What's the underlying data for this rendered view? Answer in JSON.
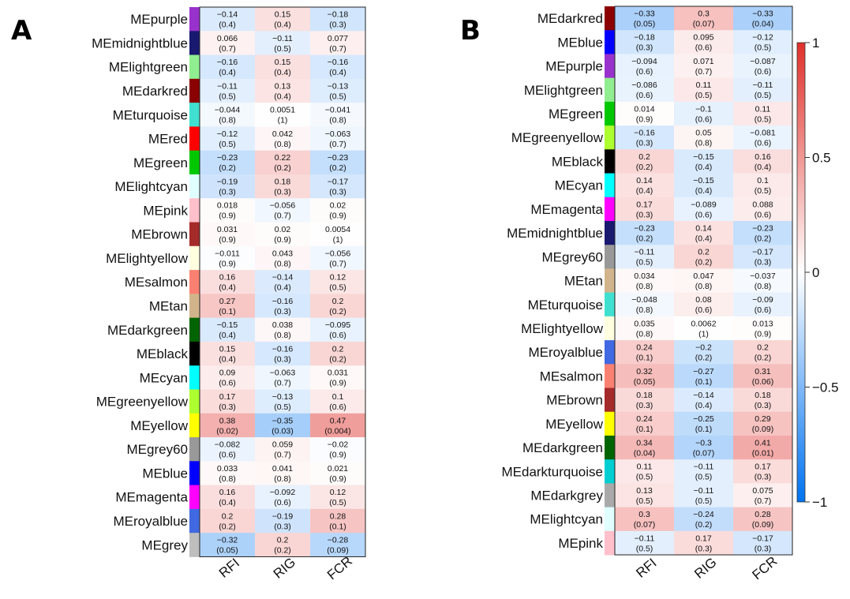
{
  "chart_data": [
    {
      "type": "heatmap",
      "panel_label": "A",
      "columns": [
        "RFI",
        "RIG",
        "FCR"
      ],
      "rows": [
        {
          "module": "MEpurple",
          "color": "#9932cc",
          "corr": [
            -0.14,
            0.15,
            -0.18
          ],
          "corr_text": [
            "−0.14",
            "0.15",
            "−0.18"
          ],
          "p": [
            "(0.4)",
            "(0.4)",
            "(0.3)"
          ]
        },
        {
          "module": "MEmidnightblue",
          "color": "#191970",
          "corr": [
            0.066,
            -0.11,
            0.077
          ],
          "corr_text": [
            "0.066",
            "−0.11",
            "0.077"
          ],
          "p": [
            "(0.7)",
            "(0.5)",
            "(0.7)"
          ]
        },
        {
          "module": "MElightgreen",
          "color": "#90ee90",
          "corr": [
            -0.16,
            0.15,
            -0.16
          ],
          "corr_text": [
            "−0.16",
            "0.15",
            "−0.16"
          ],
          "p": [
            "(0.4)",
            "(0.4)",
            "(0.4)"
          ]
        },
        {
          "module": "MEdarkred",
          "color": "#8b0000",
          "corr": [
            -0.11,
            0.13,
            -0.13
          ],
          "corr_text": [
            "−0.11",
            "0.13",
            "−0.13"
          ],
          "p": [
            "(0.5)",
            "(0.4)",
            "(0.5)"
          ]
        },
        {
          "module": "MEturquoise",
          "color": "#40e0d0",
          "corr": [
            -0.044,
            0.0051,
            -0.041
          ],
          "corr_text": [
            "−0.044",
            "0.0051",
            "−0.041"
          ],
          "p": [
            "(0.8)",
            "(1)",
            "(0.8)"
          ]
        },
        {
          "module": "MEred",
          "color": "#ff0000",
          "corr": [
            -0.12,
            0.042,
            -0.063
          ],
          "corr_text": [
            "−0.12",
            "0.042",
            "−0.063"
          ],
          "p": [
            "(0.5)",
            "(0.8)",
            "(0.7)"
          ]
        },
        {
          "module": "MEgreen",
          "color": "#00c800",
          "corr": [
            -0.23,
            0.22,
            -0.23
          ],
          "corr_text": [
            "−0.23",
            "0.22",
            "−0.23"
          ],
          "p": [
            "(0.2)",
            "(0.2)",
            "(0.2)"
          ]
        },
        {
          "module": "MElightcyan",
          "color": "#e0ffff",
          "corr": [
            -0.19,
            0.18,
            -0.17
          ],
          "corr_text": [
            "−0.19",
            "0.18",
            "−0.17"
          ],
          "p": [
            "(0.3)",
            "(0.3)",
            "(0.3)"
          ]
        },
        {
          "module": "MEpink",
          "color": "#ffc0cb",
          "corr": [
            0.018,
            -0.056,
            0.02
          ],
          "corr_text": [
            "0.018",
            "−0.056",
            "0.02"
          ],
          "p": [
            "(0.9)",
            "(0.7)",
            "(0.9)"
          ]
        },
        {
          "module": "MEbrown",
          "color": "#a52a2a",
          "corr": [
            0.031,
            0.02,
            0.0054
          ],
          "corr_text": [
            "0.031",
            "0.02",
            "0.0054"
          ],
          "p": [
            "(0.9)",
            "(0.9)",
            "(1)"
          ]
        },
        {
          "module": "MElightyellow",
          "color": "#ffffe0",
          "corr": [
            -0.011,
            0.043,
            -0.056
          ],
          "corr_text": [
            "−0.011",
            "0.043",
            "−0.056"
          ],
          "p": [
            "(0.9)",
            "(0.8)",
            "(0.7)"
          ]
        },
        {
          "module": "MEsalmon",
          "color": "#fa8072",
          "corr": [
            0.16,
            -0.14,
            0.12
          ],
          "corr_text": [
            "0.16",
            "−0.14",
            "0.12"
          ],
          "p": [
            "(0.4)",
            "(0.4)",
            "(0.5)"
          ]
        },
        {
          "module": "MEtan",
          "color": "#d2b48c",
          "corr": [
            0.27,
            -0.16,
            0.2
          ],
          "corr_text": [
            "0.27",
            "−0.16",
            "0.2"
          ],
          "p": [
            "(0.1)",
            "(0.3)",
            "(0.2)"
          ]
        },
        {
          "module": "MEdarkgreen",
          "color": "#006400",
          "corr": [
            -0.15,
            0.038,
            -0.095
          ],
          "corr_text": [
            "−0.15",
            "0.038",
            "−0.095"
          ],
          "p": [
            "(0.4)",
            "(0.8)",
            "(0.6)"
          ]
        },
        {
          "module": "MEblack",
          "color": "#000000",
          "corr": [
            0.15,
            -0.16,
            0.2
          ],
          "corr_text": [
            "0.15",
            "−0.16",
            "0.2"
          ],
          "p": [
            "(0.4)",
            "(0.3)",
            "(0.2)"
          ]
        },
        {
          "module": "MEcyan",
          "color": "#00ffff",
          "corr": [
            0.09,
            -0.063,
            0.031
          ],
          "corr_text": [
            "0.09",
            "−0.063",
            "0.031"
          ],
          "p": [
            "(0.6)",
            "(0.7)",
            "(0.9)"
          ]
        },
        {
          "module": "MEgreenyellow",
          "color": "#adff2f",
          "corr": [
            0.17,
            -0.13,
            0.1
          ],
          "corr_text": [
            "0.17",
            "−0.13",
            "0.1"
          ],
          "p": [
            "(0.3)",
            "(0.5)",
            "(0.6)"
          ]
        },
        {
          "module": "MEyellow",
          "color": "#ffff00",
          "corr": [
            0.38,
            -0.35,
            0.47
          ],
          "corr_text": [
            "0.38",
            "−0.35",
            "0.47"
          ],
          "p": [
            "(0.02)",
            "(0.03)",
            "(0.004)"
          ]
        },
        {
          "module": "MEgrey60",
          "color": "#999999",
          "corr": [
            -0.082,
            0.059,
            -0.02
          ],
          "corr_text": [
            "−0.082",
            "0.059",
            "−0.02"
          ],
          "p": [
            "(0.6)",
            "(0.7)",
            "(0.9)"
          ]
        },
        {
          "module": "MEblue",
          "color": "#0000ff",
          "corr": [
            0.033,
            0.041,
            0.021
          ],
          "corr_text": [
            "0.033",
            "0.041",
            "0.021"
          ],
          "p": [
            "(0.8)",
            "(0.8)",
            "(0.9)"
          ]
        },
        {
          "module": "MEmagenta",
          "color": "#ff00ff",
          "corr": [
            0.16,
            -0.092,
            0.12
          ],
          "corr_text": [
            "0.16",
            "−0.092",
            "0.12"
          ],
          "p": [
            "(0.4)",
            "(0.6)",
            "(0.5)"
          ]
        },
        {
          "module": "MEroyalblue",
          "color": "#4169e1",
          "corr": [
            0.2,
            -0.19,
            0.28
          ],
          "corr_text": [
            "0.2",
            "−0.19",
            "0.28"
          ],
          "p": [
            "(0.2)",
            "(0.3)",
            "(0.1)"
          ]
        },
        {
          "module": "MEgrey",
          "color": "#bebebe",
          "corr": [
            -0.32,
            0.2,
            -0.28
          ],
          "corr_text": [
            "−0.32",
            "0.2",
            "−0.28"
          ],
          "p": [
            "(0.05)",
            "(0.2)",
            "(0.09)"
          ]
        }
      ]
    },
    {
      "type": "heatmap",
      "panel_label": "B",
      "columns": [
        "RFI",
        "RIG",
        "FCR"
      ],
      "rows": [
        {
          "module": "MEdarkred",
          "color": "#8b0000",
          "corr": [
            -0.33,
            0.3,
            -0.33
          ],
          "corr_text": [
            "−0.33",
            "0.3",
            "−0.33"
          ],
          "p": [
            "(0.05)",
            "(0.07)",
            "(0.04)"
          ]
        },
        {
          "module": "MEblue",
          "color": "#0000ff",
          "corr": [
            -0.18,
            0.095,
            -0.12
          ],
          "corr_text": [
            "−0.18",
            "0.095",
            "−0.12"
          ],
          "p": [
            "(0.3)",
            "(0.6)",
            "(0.5)"
          ]
        },
        {
          "module": "MEpurple",
          "color": "#9932cc",
          "corr": [
            -0.094,
            0.071,
            -0.087
          ],
          "corr_text": [
            "−0.094",
            "0.071",
            "−0.087"
          ],
          "p": [
            "(0.6)",
            "(0.7)",
            "(0.6)"
          ]
        },
        {
          "module": "MElightgreen",
          "color": "#90ee90",
          "corr": [
            -0.086,
            0.11,
            -0.11
          ],
          "corr_text": [
            "−0.086",
            "0.11",
            "−0.11"
          ],
          "p": [
            "(0.6)",
            "(0.5)",
            "(0.5)"
          ]
        },
        {
          "module": "MEgreen",
          "color": "#00c800",
          "corr": [
            0.014,
            -0.1,
            0.11
          ],
          "corr_text": [
            "0.014",
            "−0.1",
            "0.11"
          ],
          "p": [
            "(0.9)",
            "(0.6)",
            "(0.5)"
          ]
        },
        {
          "module": "MEgreenyellow",
          "color": "#adff2f",
          "corr": [
            -0.16,
            0.05,
            -0.081
          ],
          "corr_text": [
            "−0.16",
            "0.05",
            "−0.081"
          ],
          "p": [
            "(0.3)",
            "(0.8)",
            "(0.6)"
          ]
        },
        {
          "module": "MEblack",
          "color": "#000000",
          "corr": [
            0.2,
            -0.15,
            0.16
          ],
          "corr_text": [
            "0.2",
            "−0.15",
            "0.16"
          ],
          "p": [
            "(0.2)",
            "(0.4)",
            "(0.4)"
          ]
        },
        {
          "module": "MEcyan",
          "color": "#00ffff",
          "corr": [
            0.14,
            -0.15,
            0.1
          ],
          "corr_text": [
            "0.14",
            "−0.15",
            "0.1"
          ],
          "p": [
            "(0.4)",
            "(0.4)",
            "(0.5)"
          ]
        },
        {
          "module": "MEmagenta",
          "color": "#ff00ff",
          "corr": [
            0.17,
            -0.089,
            0.088
          ],
          "corr_text": [
            "0.17",
            "−0.089",
            "0.088"
          ],
          "p": [
            "(0.3)",
            "(0.6)",
            "(0.6)"
          ]
        },
        {
          "module": "MEmidnightblue",
          "color": "#191970",
          "corr": [
            -0.23,
            0.14,
            -0.23
          ],
          "corr_text": [
            "−0.23",
            "0.14",
            "−0.23"
          ],
          "p": [
            "(0.2)",
            "(0.4)",
            "(0.2)"
          ]
        },
        {
          "module": "MEgrey60",
          "color": "#999999",
          "corr": [
            -0.11,
            0.2,
            -0.17
          ],
          "corr_text": [
            "−0.11",
            "0.2",
            "−0.17"
          ],
          "p": [
            "(0.5)",
            "(0.2)",
            "(0.3)"
          ]
        },
        {
          "module": "MEtan",
          "color": "#d2b48c",
          "corr": [
            0.034,
            0.047,
            -0.037
          ],
          "corr_text": [
            "0.034",
            "0.047",
            "−0.037"
          ],
          "p": [
            "(0.8)",
            "(0.8)",
            "(0.8)"
          ]
        },
        {
          "module": "MEturquoise",
          "color": "#40e0d0",
          "corr": [
            -0.048,
            0.08,
            -0.09
          ],
          "corr_text": [
            "−0.048",
            "0.08",
            "−0.09"
          ],
          "p": [
            "(0.8)",
            "(0.6)",
            "(0.6)"
          ]
        },
        {
          "module": "MElightyellow",
          "color": "#ffffe0",
          "corr": [
            0.035,
            0.0062,
            0.013
          ],
          "corr_text": [
            "0.035",
            "0.0062",
            "0.013"
          ],
          "p": [
            "(0.8)",
            "(1)",
            "(0.9)"
          ]
        },
        {
          "module": "MEroyalblue",
          "color": "#4169e1",
          "corr": [
            0.24,
            -0.2,
            0.2
          ],
          "corr_text": [
            "0.24",
            "−0.2",
            "0.2"
          ],
          "p": [
            "(0.1)",
            "(0.2)",
            "(0.2)"
          ]
        },
        {
          "module": "MEsalmon",
          "color": "#fa8072",
          "corr": [
            0.32,
            -0.27,
            0.31
          ],
          "corr_text": [
            "0.32",
            "−0.27",
            "0.31"
          ],
          "p": [
            "(0.05)",
            "(0.1)",
            "(0.06)"
          ]
        },
        {
          "module": "MEbrown",
          "color": "#a52a2a",
          "corr": [
            0.18,
            -0.14,
            0.18
          ],
          "corr_text": [
            "0.18",
            "−0.14",
            "0.18"
          ],
          "p": [
            "(0.3)",
            "(0.4)",
            "(0.3)"
          ]
        },
        {
          "module": "MEyellow",
          "color": "#ffff00",
          "corr": [
            0.24,
            -0.25,
            0.29
          ],
          "corr_text": [
            "0.24",
            "−0.25",
            "0.29"
          ],
          "p": [
            "(0.1)",
            "(0.1)",
            "(0.09)"
          ]
        },
        {
          "module": "MEdarkgreen",
          "color": "#006400",
          "corr": [
            0.34,
            -0.3,
            0.41
          ],
          "corr_text": [
            "0.34",
            "−0.3",
            "0.41"
          ],
          "p": [
            "(0.04)",
            "(0.07)",
            "(0.01)"
          ]
        },
        {
          "module": "MEdarkturquoise",
          "color": "#00ced1",
          "corr": [
            0.11,
            -0.11,
            0.17
          ],
          "corr_text": [
            "0.11",
            "−0.11",
            "0.17"
          ],
          "p": [
            "(0.5)",
            "(0.5)",
            "(0.3)"
          ]
        },
        {
          "module": "MEdarkgrey",
          "color": "#a9a9a9",
          "corr": [
            0.13,
            -0.11,
            0.075
          ],
          "corr_text": [
            "0.13",
            "−0.11",
            "0.075"
          ],
          "p": [
            "(0.5)",
            "(0.5)",
            "(0.7)"
          ]
        },
        {
          "module": "MElightcyan",
          "color": "#e0ffff",
          "corr": [
            0.3,
            -0.24,
            0.28
          ],
          "corr_text": [
            "0.3",
            "−0.24",
            "0.28"
          ],
          "p": [
            "(0.07)",
            "(0.2)",
            "(0.09)"
          ]
        },
        {
          "module": "MEpink",
          "color": "#ffc0cb",
          "corr": [
            -0.11,
            0.17,
            -0.17
          ],
          "corr_text": [
            "−0.11",
            "0.17",
            "−0.17"
          ],
          "p": [
            "(0.5)",
            "(0.3)",
            "(0.3)"
          ]
        }
      ]
    }
  ],
  "legend": {
    "range": [
      -1,
      1
    ],
    "ticks": [
      1,
      0.5,
      0,
      -0.5,
      -1
    ],
    "tick_labels": [
      "1",
      "0.5",
      "0",
      "−0.5",
      "−1"
    ],
    "colors": {
      "negative": "#0072f0",
      "zero": "#ffffff",
      "positive": "#e0302a"
    }
  }
}
